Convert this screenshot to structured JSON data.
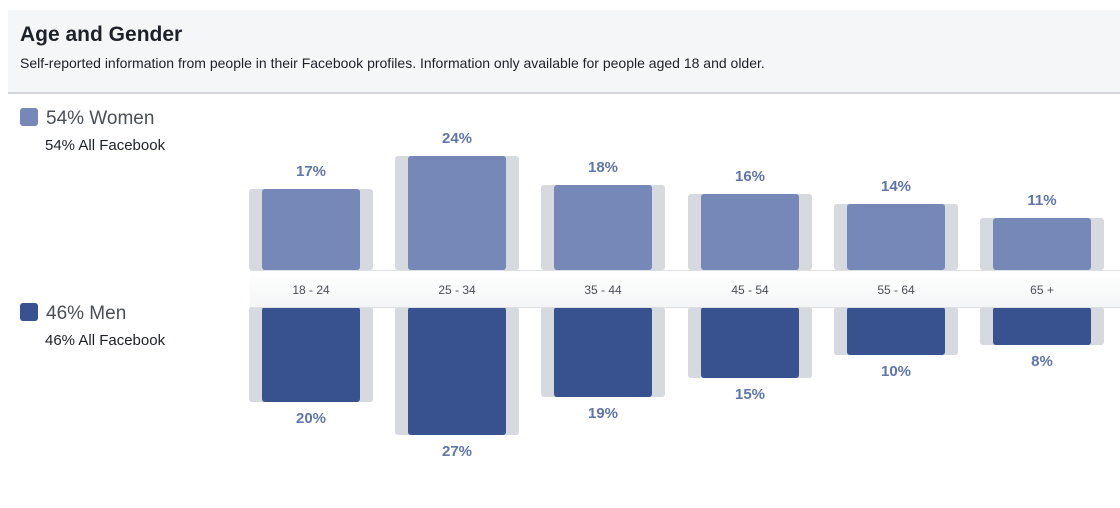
{
  "header": {
    "title": "Age and Gender",
    "subtitle": "Self-reported information from people in their Facebook profiles. Information only available for people aged 18 and older."
  },
  "legend": {
    "women": {
      "label": "54% Women",
      "sub": "54% All Facebook",
      "color": "#7588b7"
    },
    "men": {
      "label": "46% Men",
      "sub": "46% All Facebook",
      "color": "#37528e"
    }
  },
  "chart_data": {
    "type": "bar",
    "categories": [
      "18 - 24",
      "25 - 34",
      "35 - 44",
      "45 - 54",
      "55 - 64",
      "65 +"
    ],
    "series": [
      {
        "name": "Women",
        "values": [
          17,
          24,
          18,
          16,
          14,
          11
        ],
        "labels": [
          "17%",
          "24%",
          "18%",
          "16%",
          "14%",
          "11%"
        ],
        "color": "#7588b7"
      },
      {
        "name": "Men",
        "values": [
          20,
          27,
          19,
          15,
          10,
          8
        ],
        "labels": [
          "20%",
          "27%",
          "19%",
          "15%",
          "10%",
          "8%"
        ],
        "color": "#37528e"
      }
    ],
    "comparison_color": "#d6d9de"
  }
}
